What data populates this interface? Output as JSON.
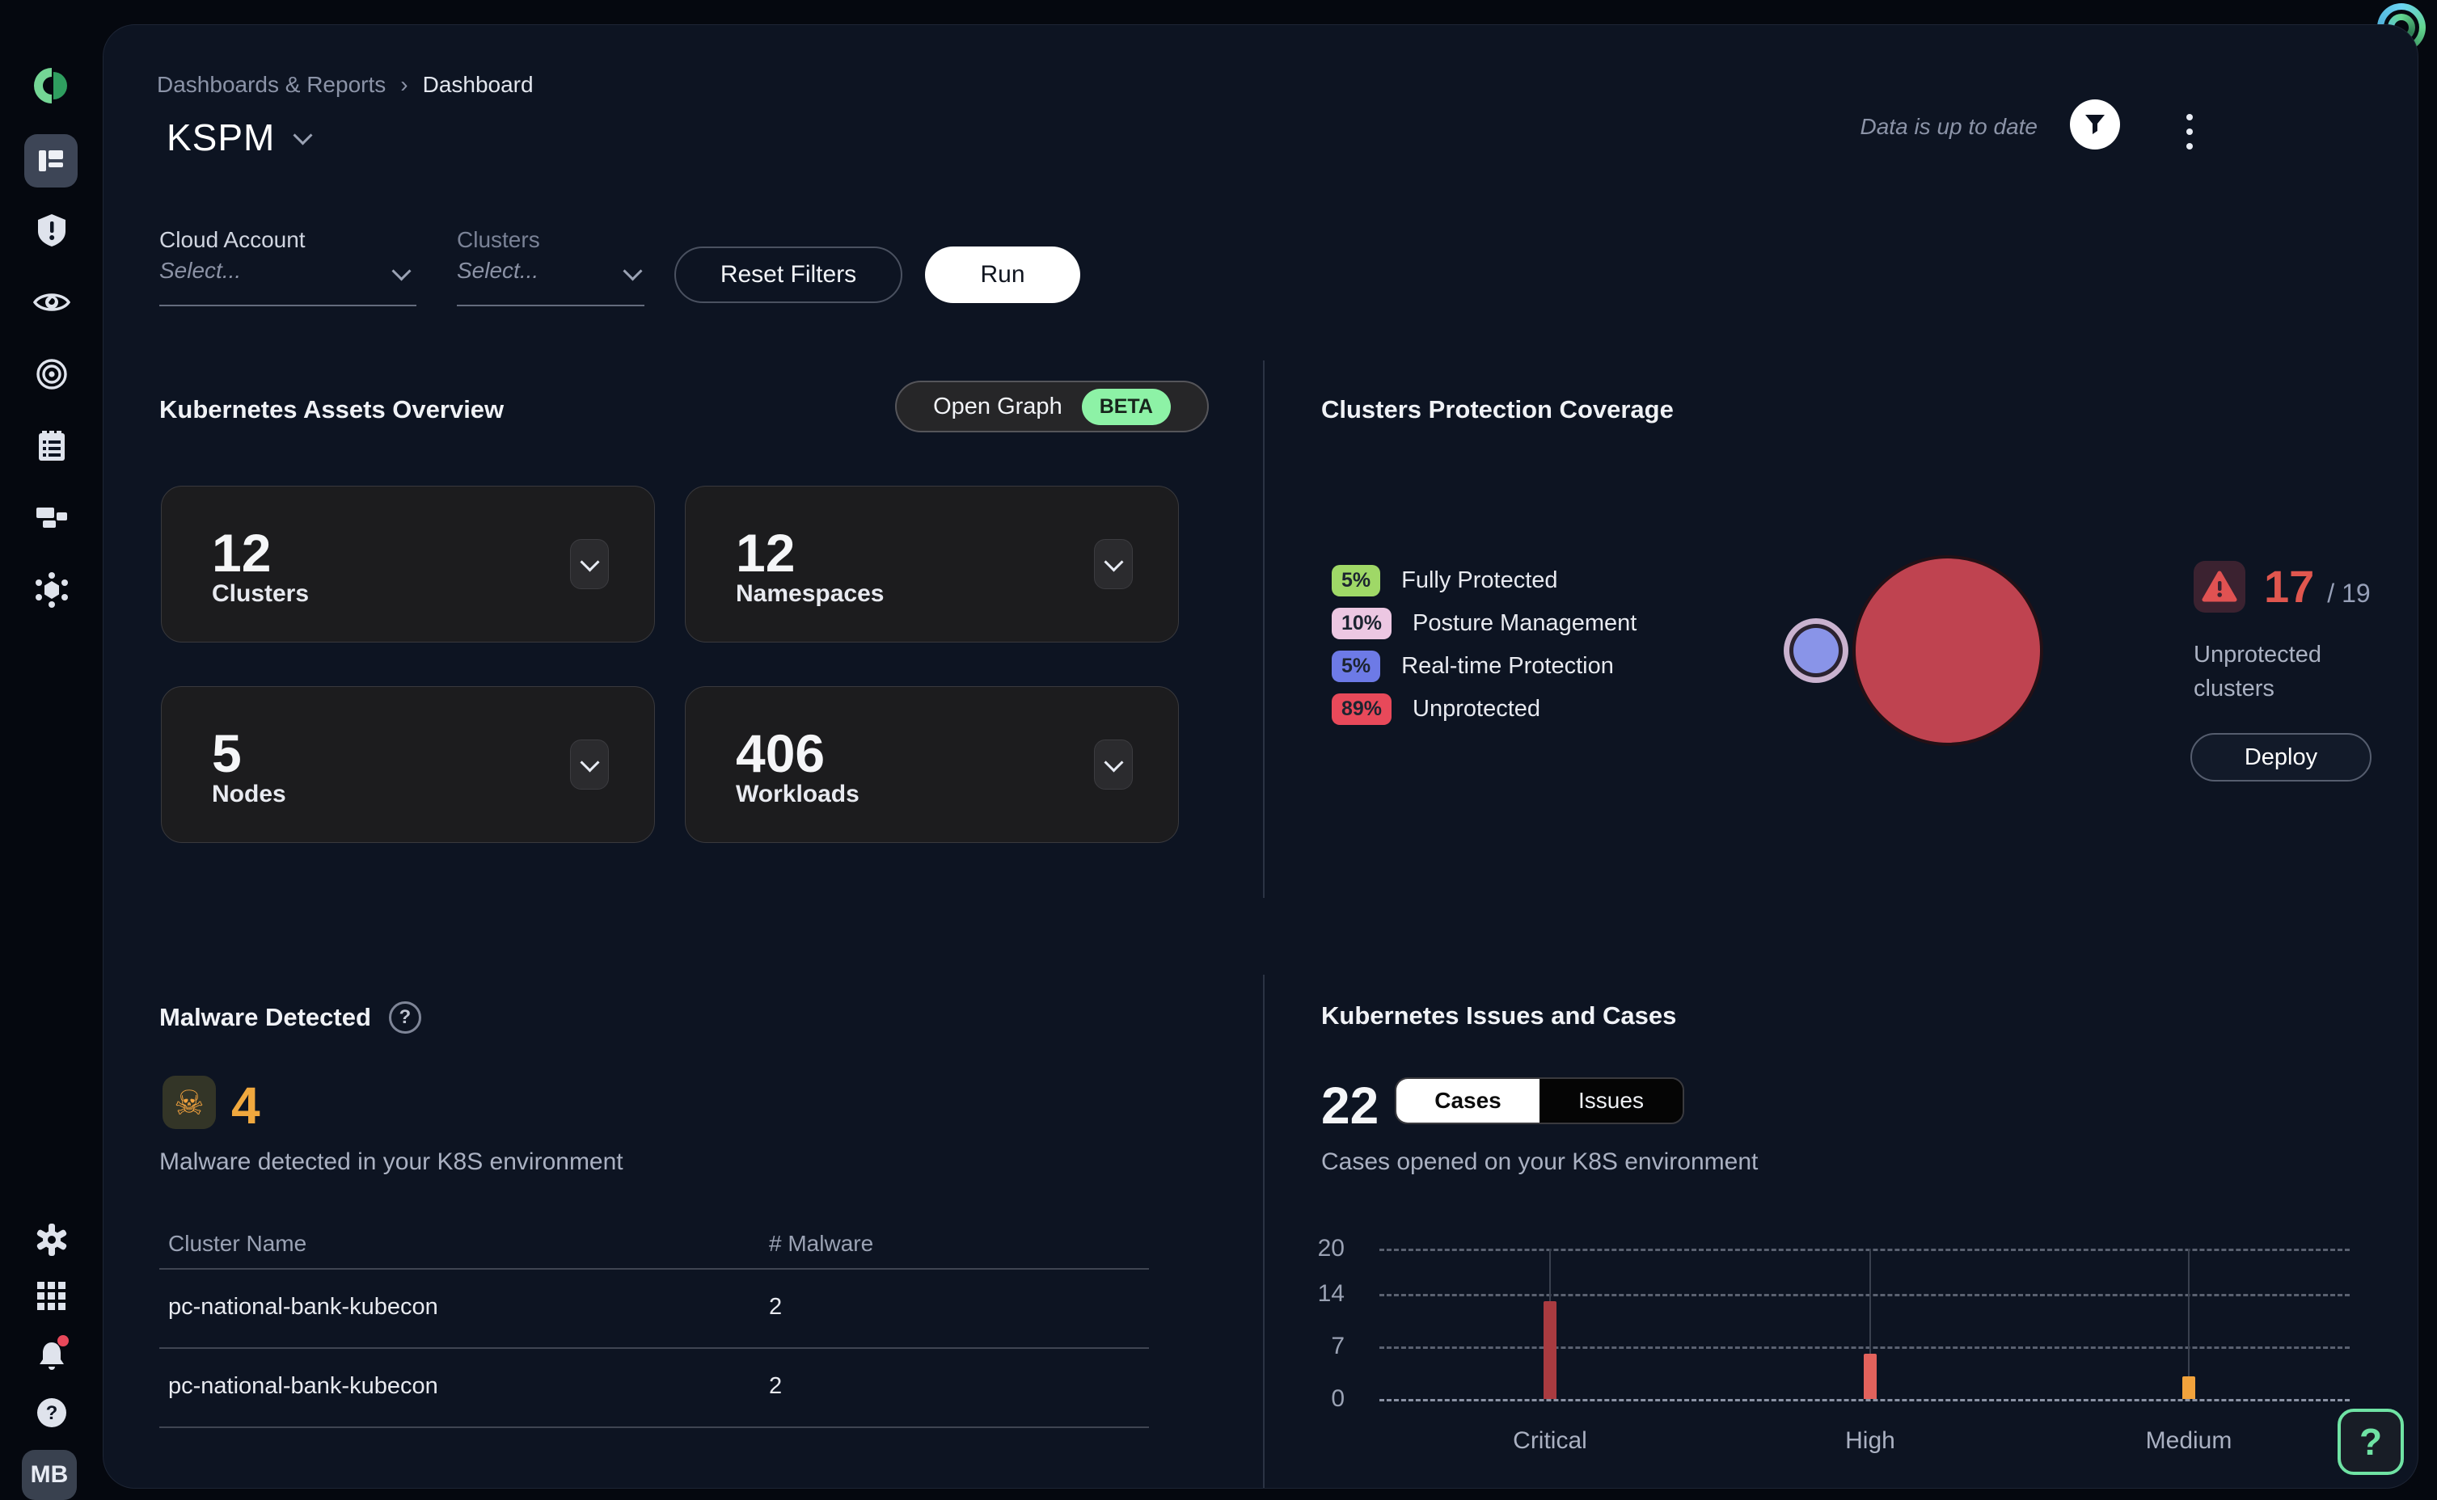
{
  "breadcrumb": {
    "parent": "Dashboards & Reports",
    "separator": "›",
    "current": "Dashboard"
  },
  "topbar": {
    "status": "Data is up to date"
  },
  "page_title": {
    "title": "KSPM"
  },
  "filters": {
    "cloud_account": {
      "label": "Cloud Account",
      "placeholder": "Select..."
    },
    "clusters": {
      "label": "Clusters",
      "placeholder": "Select..."
    },
    "reset_label": "Reset Filters",
    "run_label": "Run"
  },
  "assets_overview": {
    "title": "Kubernetes Assets Overview",
    "open_graph_label": "Open Graph",
    "beta_label": "BETA",
    "beta_color": "#8df2a6",
    "cards": [
      {
        "value": "12",
        "label": "Clusters"
      },
      {
        "value": "12",
        "label": "Namespaces"
      },
      {
        "value": "5",
        "label": "Nodes"
      },
      {
        "value": "406",
        "label": "Workloads"
      }
    ]
  },
  "protection_coverage": {
    "title": "Clusters Protection Coverage",
    "legend": [
      {
        "pct": "5%",
        "label": "Fully Protected",
        "color": "#9fd867"
      },
      {
        "pct": "10%",
        "label": "Posture Management",
        "color": "#ecc7e2"
      },
      {
        "pct": "5%",
        "label": "Real-time Protection",
        "color": "#6d7ae6"
      },
      {
        "pct": "89%",
        "label": "Unprotected",
        "color": "#e8495a"
      }
    ],
    "bubbles": [
      {
        "name": "protected-bubble",
        "fill": "#8994e8",
        "ring": "#c9b2cf"
      },
      {
        "name": "unprotected-bubble",
        "fill": "#bf4350"
      }
    ],
    "unprotected_count": "17",
    "unprotected_total": "/ 19",
    "unprotected_label": "Unprotected clusters",
    "deploy_label": "Deploy",
    "alert_color": "#e0564e"
  },
  "malware": {
    "title": "Malware Detected",
    "help_glyph": "?",
    "count": "4",
    "count_color": "#f0a83e",
    "subtitle": "Malware detected in your K8S environment",
    "table": {
      "headers": [
        "Cluster Name",
        "# Malware"
      ],
      "rows": [
        [
          "pc-national-bank-kubecon",
          "2"
        ],
        [
          "pc-national-bank-kubecon",
          "2"
        ]
      ]
    }
  },
  "issues_cases": {
    "title": "Kubernetes Issues and Cases",
    "count": "22",
    "tabs": [
      {
        "label": "Cases",
        "active": true
      },
      {
        "label": "Issues",
        "active": false
      }
    ],
    "subtitle": "Cases opened on your K8S environment",
    "chart_data": {
      "type": "bar",
      "categories": [
        "Critical",
        "High",
        "Medium"
      ],
      "values": [
        13,
        6,
        3
      ],
      "colors": [
        "#a93b40",
        "#e2625c",
        "#f2a33c"
      ],
      "yticks": [
        0,
        7,
        14,
        20
      ],
      "ylim": [
        0,
        20
      ],
      "grid": "dashed"
    }
  },
  "sidebar": {
    "avatar_initials": "MB",
    "icons": [
      "logo",
      "dashboard",
      "shield-alert",
      "eye",
      "bullseye",
      "clipboard-list",
      "blocks",
      "mesh",
      "settings-gear",
      "app-grid",
      "notifications-bell",
      "help-circle"
    ]
  },
  "help_button": {
    "label": "?"
  }
}
